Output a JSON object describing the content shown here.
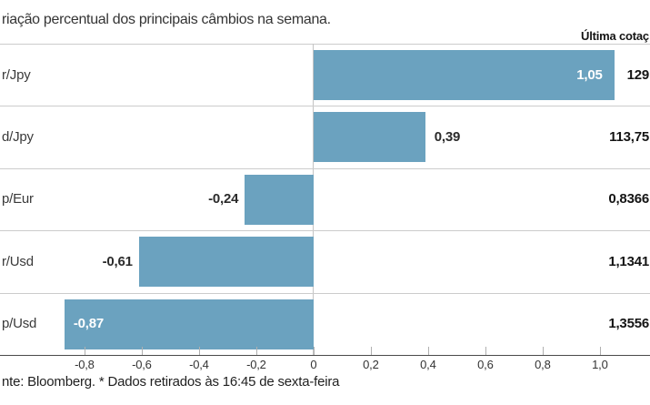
{
  "header": {
    "title": "riação percentual dos principais câmbios na semana.",
    "last_quote_label": "Última cotaç"
  },
  "footer": {
    "source": "nte: Bloomberg.  * Dados retirados às 16:45 de sexta-feira"
  },
  "colors": {
    "bar": "#6ba2bf",
    "grid_line": "#cccccc",
    "axis_line": "#4a4a4a",
    "value_on_bar": "#ffffff",
    "value_dark": "#2b2b2b"
  },
  "chart_data": {
    "type": "bar",
    "orientation": "horizontal",
    "title": "riação percentual dos principais câmbios na semana.",
    "categories": [
      "r/Jpy",
      "d/Jpy",
      "p/Eur",
      "r/Usd",
      "p/Usd"
    ],
    "values": [
      1.05,
      0.39,
      -0.24,
      -0.61,
      -0.87
    ],
    "value_labels": [
      "1,05",
      "0,39",
      "-0,24",
      "-0,61",
      "-0,87"
    ],
    "value_label_inside_bar": [
      true,
      false,
      false,
      false,
      true
    ],
    "last_quotes": [
      "129",
      "113,75",
      "0,8366",
      "1,1341",
      "1,3556"
    ],
    "last_quote_column_header": "Última cotaç",
    "x_ticks": [
      -0.8,
      -0.6,
      -0.4,
      -0.2,
      0,
      0.2,
      0.4,
      0.6,
      0.8,
      1.0
    ],
    "x_tick_labels": [
      "-0,8",
      "-0,6",
      "-0,4",
      "-0,2",
      "0",
      "0,2",
      "0,4",
      "0,6",
      "0,8",
      "1,0"
    ],
    "xlim": [
      -1.095,
      1.175
    ],
    "xlabel": "",
    "ylabel": "",
    "grid": "row-separators-and-zero-line",
    "legend": "none",
    "unit": "percent-weekly-change"
  }
}
